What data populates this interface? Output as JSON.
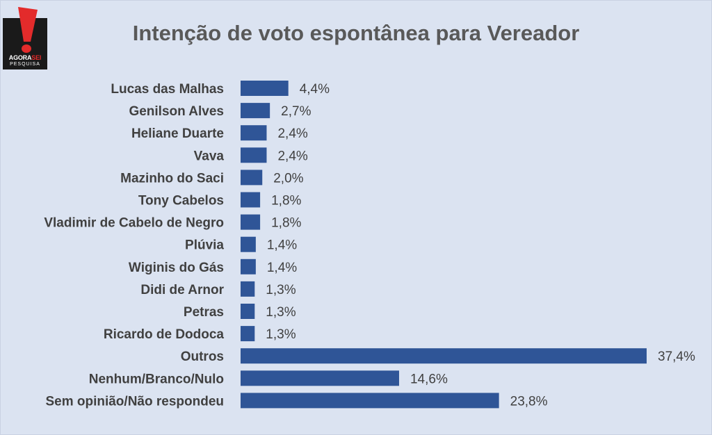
{
  "brand": {
    "logo_word_1": "AGORA",
    "logo_word_2": "SEI",
    "logo_sub": "PESQUISA",
    "logo_color": "#e32b2b"
  },
  "chart_data": {
    "type": "bar",
    "orientation": "horizontal",
    "title": "Intenção de voto espontânea para Vereador",
    "xlabel": "",
    "ylabel": "",
    "grid": false,
    "bar_color": "#2f5597",
    "categories": [
      "Lucas das Malhas",
      "Genilson Alves",
      "Heliane Duarte",
      "Vava",
      "Mazinho do Saci",
      "Tony Cabelos",
      "Vladimir de Cabelo de Negro",
      "Plúvia",
      "Wiginis do Gás",
      "Didi de Arnor",
      "Petras",
      "Ricardo de Dodoca",
      "Outros",
      "Nenhum/Branco/Nulo",
      "Sem opinião/Não respondeu"
    ],
    "values": [
      4.4,
      2.7,
      2.4,
      2.4,
      2.0,
      1.8,
      1.8,
      1.4,
      1.4,
      1.3,
      1.3,
      1.3,
      37.4,
      14.6,
      23.8
    ],
    "data_labels": [
      "4,4%",
      "2,7%",
      "2,4%",
      "2,4%",
      "2,0%",
      "1,8%",
      "1,8%",
      "1,4%",
      "1,4%",
      "1,3%",
      "1,3%",
      "1,3%",
      "37,4%",
      "14,6%",
      "23,8%"
    ],
    "xlim": [
      0,
      37.4
    ]
  }
}
